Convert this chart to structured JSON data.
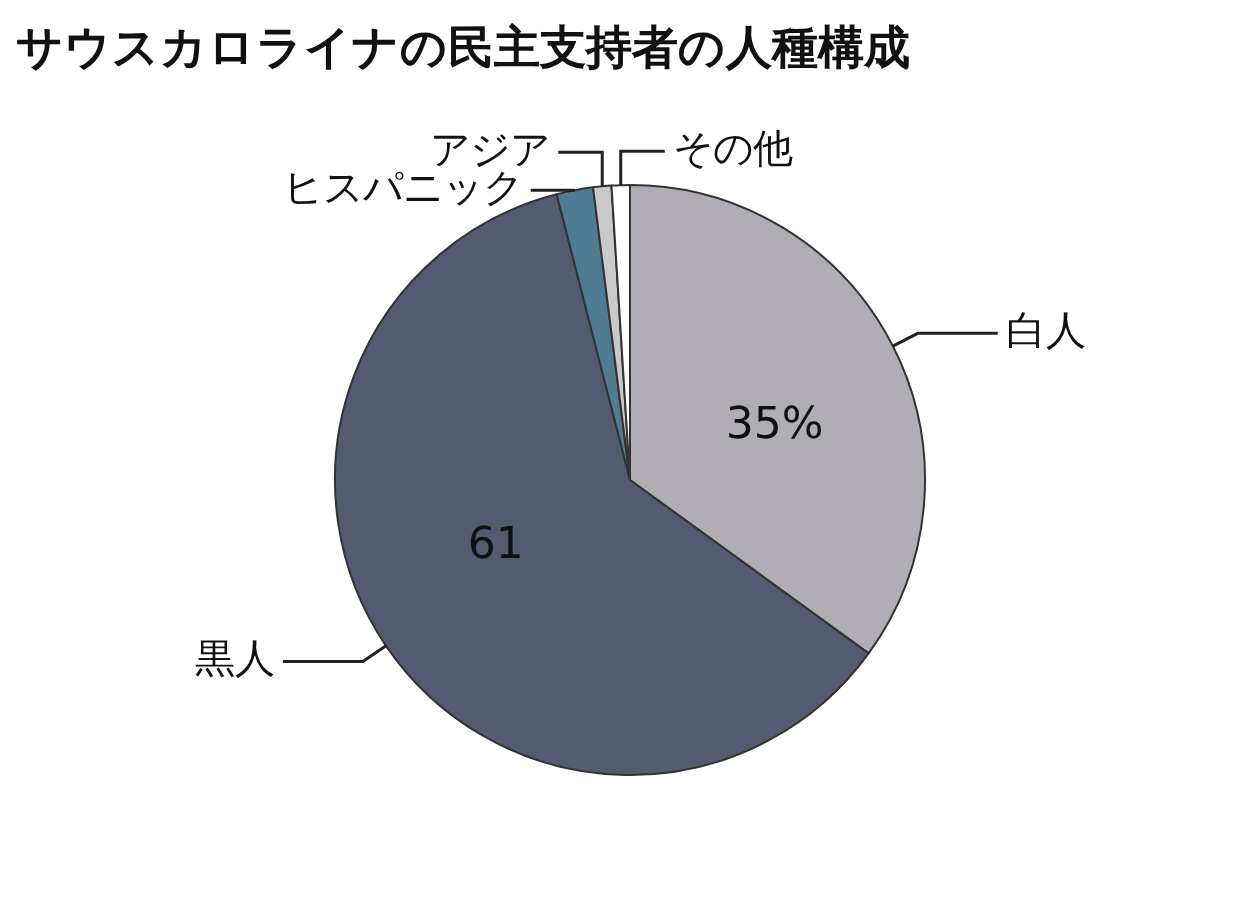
{
  "chart_data": {
    "type": "pie",
    "title": "サウスカロライナの民主支持者の人種構成",
    "categories": [
      "白人",
      "黒人",
      "ヒスパニック",
      "アジア",
      "その他"
    ],
    "values": [
      35,
      61,
      2,
      1,
      1
    ],
    "colors": [
      "#b1adb5",
      "#545b70",
      "#4f7b95",
      "#c9c9cc",
      "#ffffff"
    ],
    "value_labels": [
      "35%",
      "61",
      null,
      null,
      null
    ],
    "legend": false
  }
}
